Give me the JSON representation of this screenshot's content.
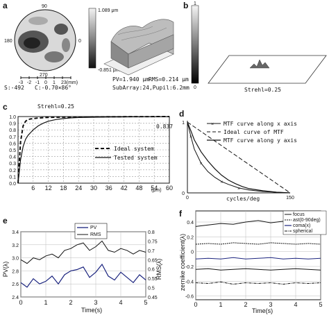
{
  "chart_data": [
    {
      "panel": "a",
      "type": "heatmap",
      "map_labels": {
        "top": "90",
        "left": "180",
        "right": "0",
        "bottom": "270"
      },
      "colorbar": {
        "max": "1.089 μm",
        "min": "-0.851 μm"
      },
      "scale_ticks": [
        "-3",
        "-2",
        "-1",
        "0",
        "1",
        "2",
        "3(mm)"
      ],
      "stats": {
        "s": "S:-492",
        "c": "C:-0.70×86°",
        "pv": "PV=1.940 μm",
        "rms": "RMS=0.214 μm",
        "subarray": "SubArray:24,Pupil:6.2mm"
      }
    },
    {
      "panel": "b",
      "type": "heatmap",
      "colorbar": {
        "max": "1",
        "min": "0"
      },
      "strehl": "Strehl=0.25"
    },
    {
      "panel": "c",
      "type": "line",
      "xlabel": "(μm)",
      "x_ticks": [
        6,
        12,
        18,
        24,
        30,
        36,
        42,
        48,
        54,
        60
      ],
      "y_ticks": [
        0,
        0.1,
        0.2,
        0.3,
        0.4,
        0.5,
        0.6,
        0.7,
        0.8,
        0.9,
        1.0
      ],
      "xlim": [
        0,
        60
      ],
      "ylim": [
        0,
        1.0
      ],
      "annotation_strehl": "Strehl=0.25",
      "annotation_value": "0.837",
      "series": [
        {
          "name": "Ideal system",
          "x": [
            0,
            1,
            2,
            3,
            4,
            5,
            6,
            8,
            10,
            12,
            15,
            20,
            30,
            40,
            50,
            60
          ],
          "y": [
            0,
            0.62,
            0.86,
            0.93,
            0.955,
            0.965,
            0.97,
            0.978,
            0.983,
            0.987,
            0.99,
            0.993,
            0.996,
            0.998,
            0.999,
            1.0
          ]
        },
        {
          "name": "Tested system",
          "x": [
            0,
            1,
            2,
            3,
            4,
            5,
            6,
            8,
            10,
            12,
            15,
            18,
            21,
            24,
            30,
            36,
            42,
            48,
            54,
            60
          ],
          "y": [
            0,
            0.35,
            0.55,
            0.66,
            0.72,
            0.76,
            0.8,
            0.86,
            0.9,
            0.93,
            0.955,
            0.97,
            0.98,
            0.985,
            0.99,
            0.993,
            0.995,
            0.997,
            0.998,
            0.999
          ]
        }
      ]
    },
    {
      "panel": "d",
      "type": "line",
      "xlabel": "cycles/deg",
      "x_ticks": [
        0,
        150
      ],
      "y_ticks": [
        0,
        1
      ],
      "xlim": [
        0,
        150
      ],
      "ylim": [
        0,
        1
      ],
      "series": [
        {
          "name": "MTF curve along x axis",
          "x": [
            0,
            5,
            10,
            20,
            30,
            40,
            50,
            60,
            75,
            90,
            110,
            130,
            150
          ],
          "y": [
            1.0,
            0.8,
            0.62,
            0.42,
            0.3,
            0.22,
            0.16,
            0.12,
            0.07,
            0.04,
            0.02,
            0.01,
            0.0
          ]
        },
        {
          "name": "Ideal curve of MTF",
          "x": [
            0,
            15,
            30,
            45,
            60,
            75,
            90,
            105,
            120,
            135,
            150
          ],
          "y": [
            1.0,
            0.9,
            0.8,
            0.7,
            0.6,
            0.5,
            0.4,
            0.3,
            0.2,
            0.1,
            0.0
          ]
        },
        {
          "name": "MTF curve along y axis",
          "x": [
            0,
            5,
            10,
            20,
            30,
            40,
            50,
            60,
            70,
            80,
            90,
            110,
            130,
            150
          ],
          "y": [
            1.0,
            0.88,
            0.75,
            0.58,
            0.45,
            0.34,
            0.25,
            0.18,
            0.13,
            0.09,
            0.06,
            0.03,
            0.01,
            0.0
          ]
        }
      ]
    },
    {
      "panel": "e",
      "type": "line",
      "xlabel": "Time(s)",
      "ylabel": "PV(λ)",
      "ylabel_right": "RMS(λ)",
      "x_ticks": [
        0,
        1,
        2,
        3,
        4,
        5
      ],
      "y_ticks": [
        2.4,
        2.6,
        2.8,
        3.0,
        3.2,
        3.4
      ],
      "y_ticks_right": [
        0.45,
        0.5,
        0.55,
        0.6,
        0.65,
        0.7,
        0.75,
        0.8
      ],
      "xlim": [
        0,
        5
      ],
      "ylim": [
        2.4,
        3.4
      ],
      "ylim_right": [
        0.45,
        0.8
      ],
      "series": [
        {
          "name": "PV",
          "axis": "left",
          "x": [
            0,
            0.25,
            0.5,
            0.75,
            1.0,
            1.25,
            1.5,
            1.75,
            2.0,
            2.25,
            2.5,
            2.75,
            3.0,
            3.25,
            3.5,
            3.75,
            4.0,
            4.25,
            4.5,
            4.75,
            5.0
          ],
          "y": [
            2.62,
            2.55,
            2.68,
            2.6,
            2.64,
            2.72,
            2.6,
            2.74,
            2.8,
            2.82,
            2.86,
            2.7,
            2.78,
            2.9,
            2.72,
            2.66,
            2.78,
            2.7,
            2.62,
            2.74,
            2.66
          ]
        },
        {
          "name": "RMS",
          "axis": "right",
          "x": [
            0,
            0.25,
            0.5,
            0.75,
            1.0,
            1.25,
            1.5,
            1.75,
            2.0,
            2.25,
            2.5,
            2.75,
            3.0,
            3.25,
            3.5,
            3.75,
            4.0,
            4.25,
            4.5,
            4.75,
            5.0
          ],
          "y": [
            0.65,
            0.63,
            0.66,
            0.65,
            0.67,
            0.68,
            0.66,
            0.7,
            0.71,
            0.73,
            0.74,
            0.7,
            0.72,
            0.75,
            0.7,
            0.69,
            0.71,
            0.7,
            0.68,
            0.7,
            0.69
          ]
        }
      ]
    },
    {
      "panel": "f",
      "type": "line",
      "xlabel": "Time(s)",
      "ylabel": "zernike coefficient(λ)",
      "x_ticks": [
        0,
        1,
        2,
        3,
        4,
        5
      ],
      "y_ticks": [
        -0.6,
        -0.4,
        -0.2,
        0,
        0.2,
        0.4
      ],
      "xlim": [
        0,
        5
      ],
      "ylim": [
        -0.65,
        0.55
      ],
      "series": [
        {
          "name": "focus",
          "x": [
            0,
            0.5,
            1.0,
            1.5,
            2.0,
            2.5,
            3.0,
            3.5,
            4.0,
            4.5,
            5.0
          ],
          "y": [
            0.34,
            0.36,
            0.38,
            0.37,
            0.4,
            0.42,
            0.39,
            0.41,
            0.38,
            0.36,
            0.34
          ]
        },
        {
          "name": "ast(0-90deg)",
          "x": [
            0,
            0.5,
            1.0,
            1.5,
            2.0,
            2.5,
            3.0,
            3.5,
            4.0,
            4.5,
            5.0
          ],
          "y": [
            0.1,
            0.11,
            0.1,
            0.12,
            0.11,
            0.1,
            0.12,
            0.11,
            0.1,
            0.11,
            0.1
          ]
        },
        {
          "name": "coma(x)",
          "x": [
            0,
            0.5,
            1.0,
            1.5,
            2.0,
            2.5,
            3.0,
            3.5,
            4.0,
            4.5,
            5.0
          ],
          "y": [
            -0.1,
            -0.09,
            -0.1,
            -0.08,
            -0.1,
            -0.09,
            -0.08,
            -0.1,
            -0.09,
            -0.1,
            -0.09
          ]
        },
        {
          "name": "spherical",
          "x": [
            0,
            0.5,
            1.0,
            1.5,
            2.0,
            2.5,
            3.0,
            3.5,
            4.0,
            4.5,
            5.0
          ],
          "y": [
            -0.42,
            -0.43,
            -0.41,
            -0.44,
            -0.42,
            -0.43,
            -0.42,
            -0.44,
            -0.42,
            -0.43,
            -0.42
          ]
        },
        {
          "name": "",
          "x": [
            0,
            0.5,
            1.0,
            1.5,
            2.0,
            2.5,
            3.0,
            3.5,
            4.0,
            4.5,
            5.0
          ],
          "y": [
            -0.24,
            -0.23,
            -0.25,
            -0.24,
            -0.23,
            -0.24,
            -0.25,
            -0.24,
            -0.23,
            -0.24,
            -0.25
          ]
        }
      ]
    }
  ],
  "colors": {
    "pv": "#1a237e",
    "rms": "#111111",
    "coma": "#1a237e",
    "ink": "#111111"
  }
}
